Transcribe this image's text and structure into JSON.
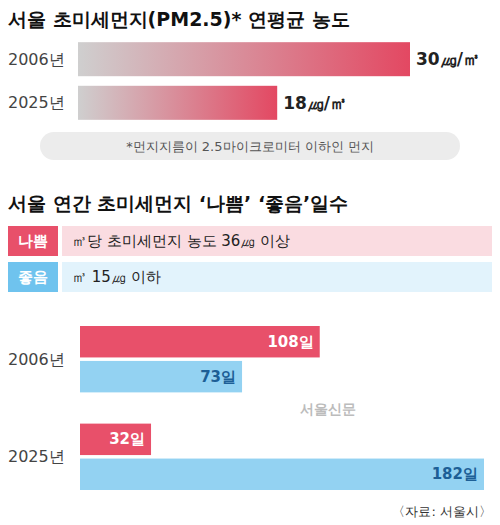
{
  "chart_data": [
    {
      "type": "bar",
      "title": "서울 초미세먼지(PM2.5)* 연평균 농도",
      "categories": [
        "2006년",
        "2025년"
      ],
      "values": [
        30,
        18
      ],
      "value_labels": [
        "30㎍/㎥",
        "18㎍/㎥"
      ],
      "color": "#e34862",
      "orientation": "horizontal",
      "data_labels": true,
      "tick_labels": "y",
      "xlim": [
        0,
        30
      ],
      "note": "*먼지지름이 2.5마이크로미터 이하인 먼지"
    },
    {
      "type": "bar",
      "title": "서울 연간 초미세먼지 ‘나쁨’ ‘좋음’일수",
      "categories": [
        "2006년",
        "2025년"
      ],
      "series": [
        {
          "name": "나쁨",
          "description": "㎥당 초미세먼지 농도 36㎍ 이상",
          "color": "#e8506a",
          "values": [
            108,
            32
          ],
          "value_labels": [
            "108일",
            "32일"
          ]
        },
        {
          "name": "좋음",
          "description": "㎥ 15㎍ 이하",
          "color": "#6fc3ee",
          "values": [
            73,
            182
          ],
          "value_labels": [
            "73일",
            "182일"
          ]
        }
      ],
      "orientation": "horizontal",
      "data_labels": true,
      "tick_labels": "y",
      "xlim": [
        0,
        182
      ],
      "legend": "top",
      "source": "〈자료: 서울시〉",
      "credit": "서울신문"
    }
  ]
}
